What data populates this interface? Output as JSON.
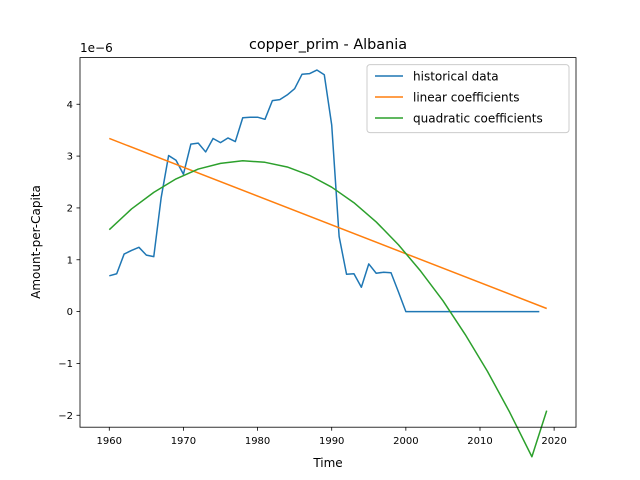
{
  "chart_data": {
    "type": "line",
    "title": "copper_prim - Albania",
    "xlabel": "Time",
    "ylabel": "Amount-per-Capita",
    "y_scale_label": "1e−6",
    "y_scale": 1e-06,
    "xlim": [
      1956.05,
      2022.95
    ],
    "ylim": [
      -2.23,
      4.9
    ],
    "x_ticks": [
      1960,
      1970,
      1980,
      1990,
      2000,
      2010,
      2020
    ],
    "x_tick_labels": [
      "1960",
      "1970",
      "1980",
      "1990",
      "2000",
      "2010",
      "2020"
    ],
    "y_ticks": [
      -2,
      -1,
      0,
      1,
      2,
      3,
      4
    ],
    "y_tick_labels": [
      "−2",
      "−1",
      "0",
      "1",
      "2",
      "3",
      "4"
    ],
    "grid": false,
    "legend_position": "upper right",
    "series": [
      {
        "name": "historical data",
        "color": "#1f77b4",
        "x": [
          1960,
          1961,
          1962,
          1963,
          1964,
          1965,
          1966,
          1967,
          1968,
          1969,
          1970,
          1971,
          1972,
          1973,
          1974,
          1975,
          1976,
          1977,
          1978,
          1979,
          1980,
          1981,
          1982,
          1983,
          1984,
          1985,
          1986,
          1987,
          1988,
          1989,
          1990,
          1991,
          1992,
          1993,
          1994,
          1995,
          1996,
          1997,
          1998,
          1999,
          2000,
          2001,
          2002,
          2003,
          2004,
          2005,
          2006,
          2007,
          2008,
          2009,
          2010,
          2011,
          2012,
          2013,
          2014,
          2015,
          2016,
          2017,
          2018
        ],
        "y": [
          0.69,
          0.73,
          1.11,
          1.18,
          1.24,
          1.09,
          1.06,
          2.2,
          3.01,
          2.92,
          2.65,
          3.23,
          3.25,
          3.08,
          3.34,
          3.26,
          3.35,
          3.28,
          3.74,
          3.75,
          3.75,
          3.71,
          4.07,
          4.09,
          4.18,
          4.3,
          4.58,
          4.59,
          4.66,
          4.57,
          3.6,
          1.45,
          0.72,
          0.73,
          0.47,
          0.92,
          0.74,
          0.76,
          0.75,
          0.38,
          0.0,
          0.0,
          0.0,
          0.0,
          0.0,
          0.0,
          0.0,
          0.0,
          0.0,
          0.0,
          0.0,
          0.0,
          0.0,
          0.0,
          0.0,
          0.0,
          0.0,
          0.0,
          0.0
        ]
      },
      {
        "name": "linear coefficients",
        "color": "#ff7f0e",
        "x": [
          1960,
          2019
        ],
        "y": [
          3.34,
          0.06
        ]
      },
      {
        "name": "quadratic coefficients",
        "color": "#2ca02c",
        "x": [
          1960,
          1963,
          1966,
          1969,
          1972,
          1975,
          1978,
          1981,
          1984,
          1987,
          1990,
          1993,
          1996,
          1999,
          2002,
          2005,
          2008,
          2011,
          2014,
          2017,
          2019
        ],
        "y": [
          1.58,
          1.98,
          2.3,
          2.56,
          2.75,
          2.86,
          2.91,
          2.88,
          2.79,
          2.63,
          2.4,
          2.1,
          1.73,
          1.29,
          0.78,
          0.21,
          -0.44,
          -1.15,
          -1.94,
          -2.8,
          -1.91
        ]
      }
    ]
  }
}
